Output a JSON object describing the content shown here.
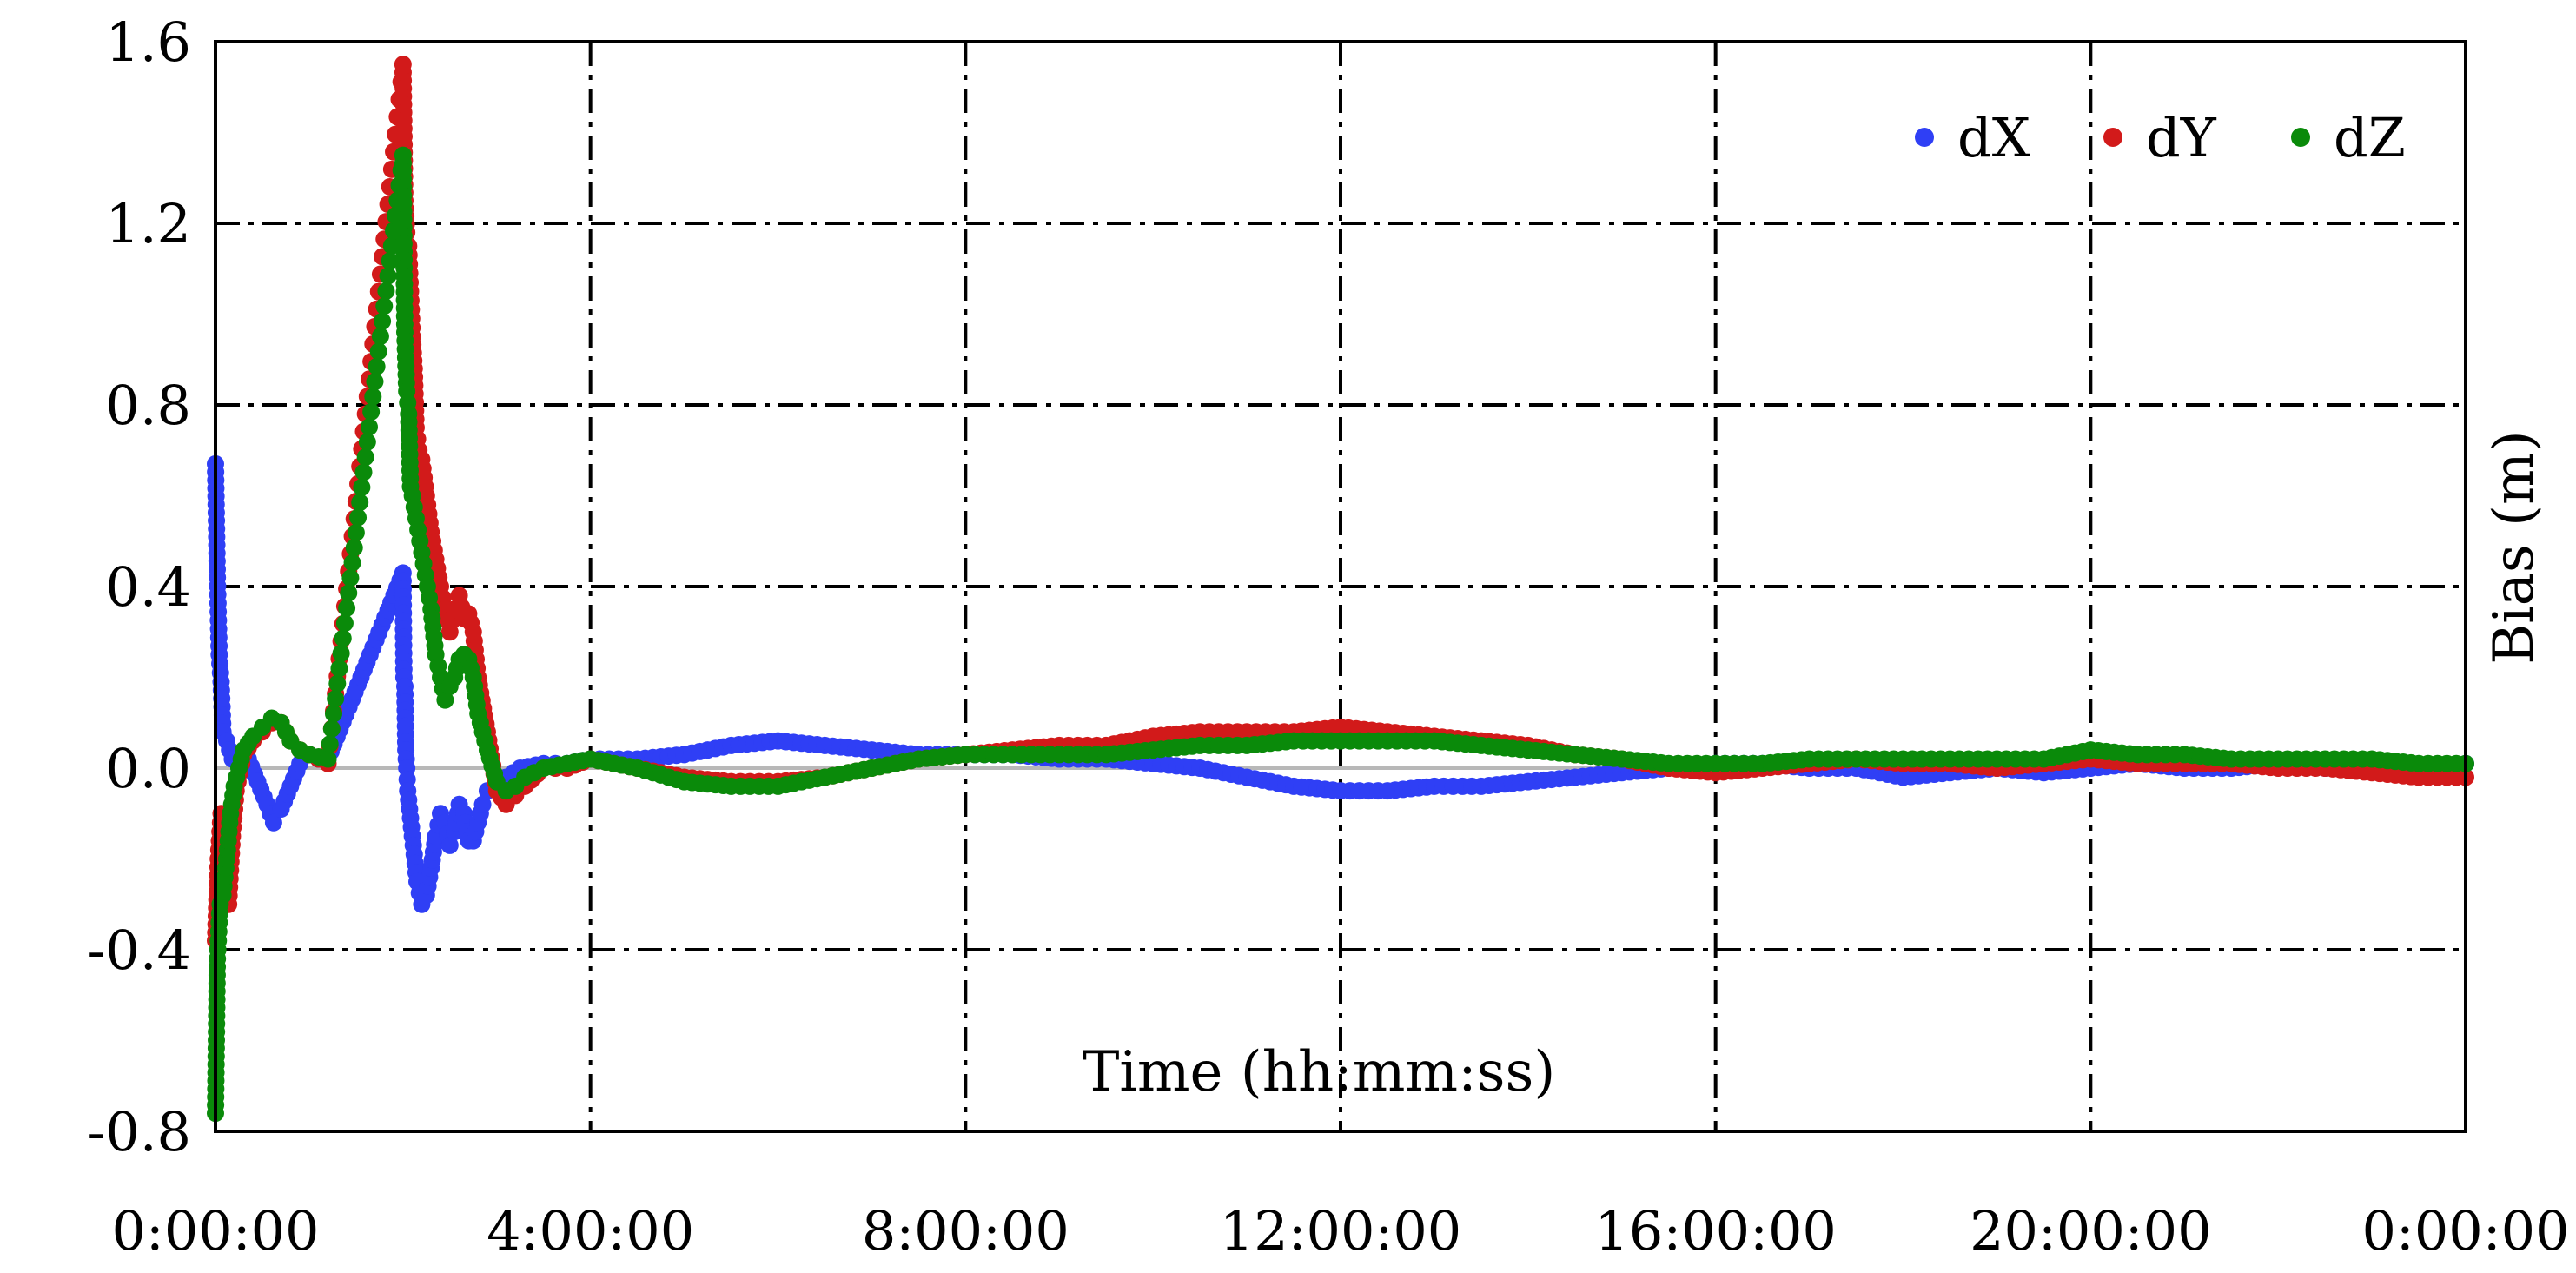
{
  "chart_data": {
    "type": "scatter",
    "title": "",
    "xlabel": "Time (hh:mm:ss)",
    "ylabel": "Bias (m)",
    "xlim": [
      0,
      24
    ],
    "ylim": [
      -0.8,
      1.6
    ],
    "x_unit": "hours",
    "xtick_values": [
      0,
      4,
      8,
      12,
      16,
      20,
      24
    ],
    "xtick_labels": [
      "0:00:00",
      "4:00:00",
      "8:00:00",
      "12:00:00",
      "16:00:00",
      "20:00:00",
      "0:00:00"
    ],
    "ytick_values": [
      -0.8,
      -0.4,
      0.0,
      0.4,
      0.8,
      1.2,
      1.6
    ],
    "ytick_labels": [
      "-0.8",
      "-0.4",
      "0.0",
      "0.4",
      "0.8",
      "1.2",
      "1.6"
    ],
    "grid": "dash-dot",
    "legend_position": "top-right",
    "zero_line": true,
    "series": [
      {
        "name": "dX",
        "color": "#2f3ff5",
        "points": [
          [
            0.0,
            0.67
          ],
          [
            0.02,
            0.42
          ],
          [
            0.04,
            0.25
          ],
          [
            0.06,
            0.19
          ],
          [
            0.08,
            0.08
          ],
          [
            0.12,
            0.06
          ],
          [
            0.18,
            0.02
          ],
          [
            0.25,
            0.03
          ],
          [
            0.35,
            0.02
          ],
          [
            0.45,
            -0.03
          ],
          [
            0.55,
            -0.08
          ],
          [
            0.62,
            -0.12
          ],
          [
            0.7,
            -0.09
          ],
          [
            0.8,
            -0.04
          ],
          [
            0.9,
            0.01
          ],
          [
            1.0,
            0.03
          ],
          [
            1.1,
            0.02
          ],
          [
            1.2,
            0.02
          ],
          [
            2.0,
            0.43
          ],
          [
            2.01,
            0.2
          ],
          [
            2.02,
            0.18
          ],
          [
            2.03,
            0.04
          ],
          [
            2.04,
            0.0
          ],
          [
            2.05,
            -0.05
          ],
          [
            2.1,
            -0.15
          ],
          [
            2.15,
            -0.25
          ],
          [
            2.2,
            -0.3
          ],
          [
            2.25,
            -0.28
          ],
          [
            2.3,
            -0.22
          ],
          [
            2.35,
            -0.15
          ],
          [
            2.4,
            -0.1
          ],
          [
            2.45,
            -0.12
          ],
          [
            2.5,
            -0.17
          ],
          [
            2.55,
            -0.14
          ],
          [
            2.6,
            -0.08
          ],
          [
            2.65,
            -0.1
          ],
          [
            2.7,
            -0.16
          ],
          [
            2.75,
            -0.16
          ],
          [
            2.8,
            -0.12
          ],
          [
            2.85,
            -0.08
          ],
          [
            2.9,
            -0.05
          ],
          [
            3.0,
            -0.04
          ],
          [
            3.1,
            -0.02
          ],
          [
            3.25,
            0.0
          ],
          [
            3.5,
            0.01
          ],
          [
            3.75,
            0.01
          ],
          [
            4.0,
            0.02
          ],
          [
            4.5,
            0.02
          ],
          [
            5.0,
            0.03
          ],
          [
            5.5,
            0.05
          ],
          [
            6.0,
            0.06
          ],
          [
            6.5,
            0.05
          ],
          [
            7.0,
            0.04
          ],
          [
            7.5,
            0.03
          ],
          [
            8.0,
            0.03
          ],
          [
            8.5,
            0.03
          ],
          [
            9.0,
            0.02
          ],
          [
            9.5,
            0.02
          ],
          [
            10.0,
            0.01
          ],
          [
            10.5,
            0.0
          ],
          [
            11.0,
            -0.02
          ],
          [
            11.5,
            -0.04
          ],
          [
            12.0,
            -0.05
          ],
          [
            12.5,
            -0.05
          ],
          [
            13.0,
            -0.04
          ],
          [
            13.5,
            -0.04
          ],
          [
            14.0,
            -0.03
          ],
          [
            14.5,
            -0.02
          ],
          [
            15.0,
            -0.01
          ],
          [
            15.5,
            0.0
          ],
          [
            16.0,
            0.01
          ],
          [
            16.5,
            0.01
          ],
          [
            17.0,
            0.0
          ],
          [
            17.5,
            0.0
          ],
          [
            18.0,
            -0.02
          ],
          [
            18.5,
            -0.01
          ],
          [
            19.0,
            0.0
          ],
          [
            19.5,
            -0.01
          ],
          [
            20.0,
            0.0
          ],
          [
            20.5,
            0.01
          ],
          [
            21.0,
            0.0
          ],
          [
            21.5,
            0.0
          ],
          [
            22.0,
            0.01
          ],
          [
            22.5,
            0.0
          ],
          [
            23.0,
            0.01
          ],
          [
            23.5,
            0.0
          ],
          [
            24.0,
            0.01
          ]
        ]
      },
      {
        "name": "dY",
        "color": "#d21a1a",
        "points": [
          [
            0.0,
            -0.38
          ],
          [
            0.03,
            -0.2
          ],
          [
            0.06,
            -0.1
          ],
          [
            0.1,
            -0.25
          ],
          [
            0.14,
            -0.3
          ],
          [
            0.18,
            -0.15
          ],
          [
            0.22,
            -0.05
          ],
          [
            0.3,
            0.03
          ],
          [
            0.4,
            0.06
          ],
          [
            0.5,
            0.08
          ],
          [
            0.6,
            0.1
          ],
          [
            0.7,
            0.1
          ],
          [
            0.8,
            0.06
          ],
          [
            0.9,
            0.04
          ],
          [
            1.0,
            0.03
          ],
          [
            1.2,
            0.01
          ],
          [
            2.0,
            1.55
          ],
          [
            2.02,
            1.25
          ],
          [
            2.04,
            1.18
          ],
          [
            2.06,
            1.15
          ],
          [
            2.08,
            1.05
          ],
          [
            2.1,
            0.95
          ],
          [
            2.12,
            0.88
          ],
          [
            2.14,
            0.75
          ],
          [
            2.17,
            0.7
          ],
          [
            2.2,
            0.68
          ],
          [
            2.25,
            0.6
          ],
          [
            2.3,
            0.52
          ],
          [
            2.35,
            0.46
          ],
          [
            2.4,
            0.4
          ],
          [
            2.45,
            0.35
          ],
          [
            2.5,
            0.3
          ],
          [
            2.55,
            0.35
          ],
          [
            2.6,
            0.38
          ],
          [
            2.65,
            0.33
          ],
          [
            2.7,
            0.34
          ],
          [
            2.75,
            0.3
          ],
          [
            2.8,
            0.2
          ],
          [
            2.9,
            0.08
          ],
          [
            3.0,
            -0.05
          ],
          [
            3.1,
            -0.08
          ],
          [
            3.2,
            -0.06
          ],
          [
            3.3,
            -0.04
          ],
          [
            3.5,
            0.0
          ],
          [
            3.75,
            0.0
          ],
          [
            4.0,
            0.02
          ],
          [
            4.5,
            0.0
          ],
          [
            5.0,
            -0.02
          ],
          [
            5.5,
            -0.03
          ],
          [
            6.0,
            -0.03
          ],
          [
            6.5,
            -0.02
          ],
          [
            7.0,
            0.0
          ],
          [
            7.5,
            0.02
          ],
          [
            8.0,
            0.03
          ],
          [
            8.5,
            0.04
          ],
          [
            9.0,
            0.05
          ],
          [
            9.5,
            0.05
          ],
          [
            10.0,
            0.07
          ],
          [
            10.5,
            0.08
          ],
          [
            11.0,
            0.08
          ],
          [
            11.5,
            0.08
          ],
          [
            12.0,
            0.09
          ],
          [
            12.5,
            0.08
          ],
          [
            13.0,
            0.07
          ],
          [
            13.5,
            0.06
          ],
          [
            14.0,
            0.05
          ],
          [
            14.5,
            0.03
          ],
          [
            15.0,
            0.02
          ],
          [
            15.5,
            0.0
          ],
          [
            16.0,
            -0.01
          ],
          [
            16.5,
            0.0
          ],
          [
            17.0,
            0.01
          ],
          [
            17.5,
            0.02
          ],
          [
            18.0,
            0.01
          ],
          [
            18.5,
            0.01
          ],
          [
            19.0,
            0.0
          ],
          [
            19.5,
            0.01
          ],
          [
            20.0,
            0.02
          ],
          [
            20.5,
            0.01
          ],
          [
            21.0,
            0.01
          ],
          [
            21.5,
            0.01
          ],
          [
            22.0,
            0.0
          ],
          [
            22.5,
            0.0
          ],
          [
            23.0,
            -0.01
          ],
          [
            23.5,
            -0.02
          ],
          [
            24.0,
            -0.02
          ]
        ]
      },
      {
        "name": "dZ",
        "color": "#0a8a0a",
        "points": [
          [
            0.0,
            -0.76
          ],
          [
            0.02,
            -0.42
          ],
          [
            0.05,
            -0.3
          ],
          [
            0.08,
            -0.28
          ],
          [
            0.12,
            -0.2
          ],
          [
            0.16,
            -0.1
          ],
          [
            0.2,
            -0.04
          ],
          [
            0.25,
            0.0
          ],
          [
            0.3,
            0.04
          ],
          [
            0.4,
            0.07
          ],
          [
            0.5,
            0.09
          ],
          [
            0.6,
            0.11
          ],
          [
            0.7,
            0.1
          ],
          [
            0.8,
            0.06
          ],
          [
            0.9,
            0.04
          ],
          [
            1.0,
            0.03
          ],
          [
            1.2,
            0.02
          ],
          [
            2.0,
            1.35
          ],
          [
            2.02,
            0.96
          ],
          [
            2.04,
            0.83
          ],
          [
            2.06,
            0.78
          ],
          [
            2.08,
            0.62
          ],
          [
            2.1,
            0.6
          ],
          [
            2.14,
            0.55
          ],
          [
            2.18,
            0.5
          ],
          [
            2.22,
            0.45
          ],
          [
            2.26,
            0.4
          ],
          [
            2.3,
            0.35
          ],
          [
            2.35,
            0.25
          ],
          [
            2.4,
            0.2
          ],
          [
            2.45,
            0.15
          ],
          [
            2.5,
            0.18
          ],
          [
            2.55,
            0.2
          ],
          [
            2.6,
            0.24
          ],
          [
            2.65,
            0.25
          ],
          [
            2.7,
            0.24
          ],
          [
            2.75,
            0.2
          ],
          [
            2.8,
            0.12
          ],
          [
            2.9,
            0.04
          ],
          [
            3.0,
            -0.03
          ],
          [
            3.1,
            -0.05
          ],
          [
            3.2,
            -0.04
          ],
          [
            3.3,
            -0.02
          ],
          [
            3.5,
            0.0
          ],
          [
            3.75,
            0.01
          ],
          [
            4.0,
            0.02
          ],
          [
            4.5,
            0.0
          ],
          [
            5.0,
            -0.03
          ],
          [
            5.5,
            -0.04
          ],
          [
            6.0,
            -0.04
          ],
          [
            6.5,
            -0.02
          ],
          [
            7.0,
            0.0
          ],
          [
            7.5,
            0.02
          ],
          [
            8.0,
            0.03
          ],
          [
            8.5,
            0.03
          ],
          [
            9.0,
            0.03
          ],
          [
            9.5,
            0.03
          ],
          [
            10.0,
            0.04
          ],
          [
            10.5,
            0.05
          ],
          [
            11.0,
            0.05
          ],
          [
            11.5,
            0.06
          ],
          [
            12.0,
            0.06
          ],
          [
            12.5,
            0.06
          ],
          [
            13.0,
            0.06
          ],
          [
            13.5,
            0.05
          ],
          [
            14.0,
            0.04
          ],
          [
            14.5,
            0.03
          ],
          [
            15.0,
            0.02
          ],
          [
            15.5,
            0.01
          ],
          [
            16.0,
            0.01
          ],
          [
            16.5,
            0.01
          ],
          [
            17.0,
            0.02
          ],
          [
            17.5,
            0.02
          ],
          [
            18.0,
            0.02
          ],
          [
            18.5,
            0.02
          ],
          [
            19.0,
            0.02
          ],
          [
            19.5,
            0.02
          ],
          [
            20.0,
            0.04
          ],
          [
            20.5,
            0.03
          ],
          [
            21.0,
            0.03
          ],
          [
            21.5,
            0.02
          ],
          [
            22.0,
            0.02
          ],
          [
            22.5,
            0.02
          ],
          [
            23.0,
            0.02
          ],
          [
            23.5,
            0.01
          ],
          [
            24.0,
            0.01
          ]
        ]
      }
    ]
  }
}
